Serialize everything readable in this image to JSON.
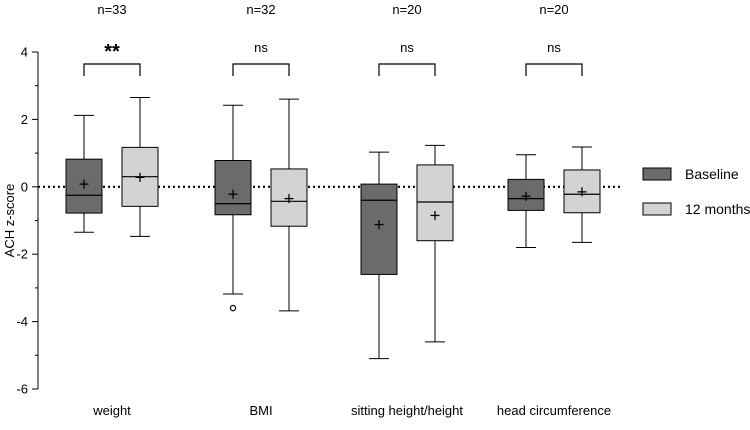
{
  "chart_data": {
    "type": "box",
    "ylabel": "ACH z-score",
    "xlabel": "",
    "ylim": [
      -6,
      4
    ],
    "yticks": [
      "4",
      "2",
      "0",
      "-2",
      "-4",
      "-6"
    ],
    "reference_line": 0,
    "categories": [
      "weight",
      "BMI",
      "sitting height/height",
      "head circumference"
    ],
    "n_labels": [
      "n=33",
      "n=32",
      "n=20",
      "n=20"
    ],
    "significance": [
      "**",
      "ns",
      "ns",
      "ns"
    ],
    "series": [
      {
        "name": "Baseline",
        "color": "#6b6b6b",
        "boxes": [
          {
            "whisker_low": -1.35,
            "q1": -0.78,
            "median": -0.25,
            "q3": 0.82,
            "whisker_high": 2.12,
            "mean": 0.08,
            "outliers": []
          },
          {
            "whisker_low": -3.18,
            "q1": -0.83,
            "median": -0.5,
            "q3": 0.78,
            "whisker_high": 2.42,
            "mean": -0.22,
            "outliers": [
              -3.6
            ]
          },
          {
            "whisker_low": -5.1,
            "q1": -2.6,
            "median": -0.4,
            "q3": 0.08,
            "whisker_high": 1.03,
            "mean": -1.12,
            "outliers": []
          },
          {
            "whisker_low": -1.8,
            "q1": -0.7,
            "median": -0.35,
            "q3": 0.22,
            "whisker_high": 0.95,
            "mean": -0.28,
            "outliers": []
          }
        ]
      },
      {
        "name": "12 months",
        "color": "#d3d3d3",
        "boxes": [
          {
            "whisker_low": -1.47,
            "q1": -0.58,
            "median": 0.3,
            "q3": 1.17,
            "whisker_high": 2.65,
            "mean": 0.28,
            "outliers": []
          },
          {
            "whisker_low": -3.68,
            "q1": -1.17,
            "median": -0.43,
            "q3": 0.53,
            "whisker_high": 2.6,
            "mean": -0.35,
            "outliers": []
          },
          {
            "whisker_low": -4.6,
            "q1": -1.6,
            "median": -0.45,
            "q3": 0.65,
            "whisker_high": 1.23,
            "mean": -0.85,
            "outliers": []
          },
          {
            "whisker_low": -1.65,
            "q1": -0.77,
            "median": -0.22,
            "q3": 0.5,
            "whisker_high": 1.18,
            "mean": -0.15,
            "outliers": []
          }
        ]
      }
    ],
    "legend": {
      "placement": "right"
    }
  }
}
